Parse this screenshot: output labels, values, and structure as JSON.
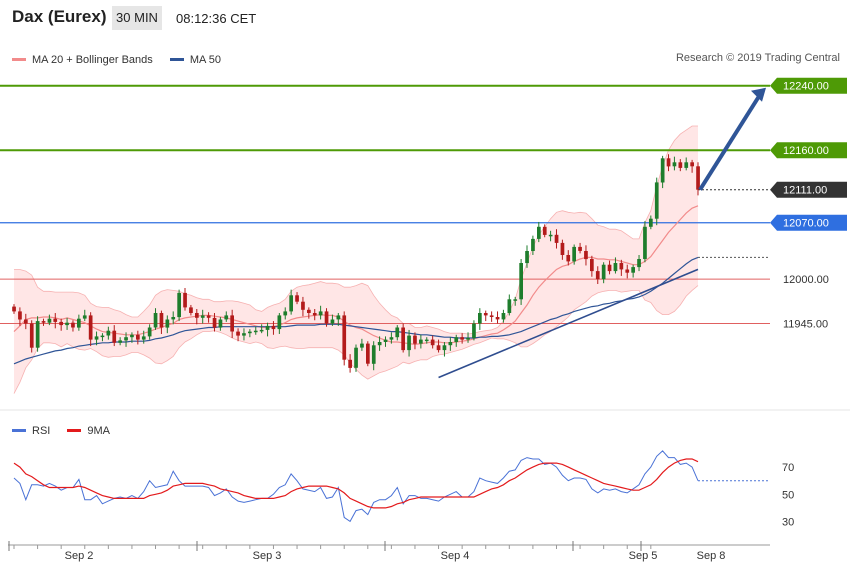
{
  "header": {
    "title": "Dax (Eurex)",
    "interval": "30 MIN",
    "time": "08:12:36 CET"
  },
  "legend": {
    "items": [
      {
        "label": "MA 20 + Bollinger Bands",
        "color": "#f28b8b"
      },
      {
        "label": "MA 50",
        "color": "#2f5597"
      }
    ],
    "credit": "Research © 2019 Trading Central"
  },
  "rsi_legend": {
    "items": [
      {
        "label": "RSI",
        "color": "#4a72d6"
      },
      {
        "label": "9MA",
        "color": "#e31a1c"
      }
    ]
  },
  "chart_data": {
    "type": "candlestick",
    "y_range": [
      11860,
      12262
    ],
    "x_labels": [
      "Sep 2",
      "Sep 3",
      "Sep 4",
      "Sep 5",
      "Sep 8"
    ],
    "levels": [
      {
        "value": 12240,
        "label": "12240.00",
        "color": "#4e9a06",
        "style": "resistance"
      },
      {
        "value": 12160,
        "label": "12160.00",
        "color": "#4e9a06",
        "style": "resistance"
      },
      {
        "value": 12111,
        "label": "12111.00",
        "color": "#333333",
        "style": "last"
      },
      {
        "value": 12070,
        "label": "12070.00",
        "color": "#2f6fe0",
        "style": "pivot"
      },
      {
        "value": 12000,
        "label": "12000.00",
        "color": "#e06060",
        "style": "support"
      },
      {
        "value": 11945,
        "label": "11945.00",
        "color": "#e06060",
        "style": "support"
      }
    ],
    "candles_close": [
      11960,
      11950,
      11945,
      11915,
      11948,
      11946,
      11951,
      11947,
      11943,
      11946,
      11940,
      11951,
      11955,
      11925,
      11929,
      11930,
      11936,
      11921,
      11924,
      11928,
      11931,
      11925,
      11929,
      11940,
      11958,
      11940,
      11950,
      11953,
      11983,
      11965,
      11958,
      11952,
      11955,
      11952,
      11940,
      11950,
      11955,
      11935,
      11930,
      11933,
      11935,
      11936,
      11937,
      11942,
      11938,
      11955,
      11960,
      11980,
      11972,
      11962,
      11958,
      11955,
      11960,
      11945,
      11950,
      11955,
      11900,
      11890,
      11915,
      11920,
      11895,
      11918,
      11922,
      11925,
      11928,
      11940,
      11912,
      11930,
      11920,
      11925,
      11925,
      11918,
      11912,
      11918,
      11922,
      11928,
      11925,
      11927,
      11945,
      11958,
      11955,
      11953,
      11950,
      11958,
      11975,
      11975,
      12020,
      12035,
      12050,
      12065,
      12055,
      12055,
      12045,
      12030,
      12022,
      12040,
      12035,
      12025,
      12010,
      12000,
      12018,
      12010,
      12020,
      12012,
      12008,
      12015,
      12025,
      12065,
      12075,
      12120,
      12150,
      12140,
      12145,
      12138,
      12145,
      12140,
      12111
    ],
    "bollinger": {
      "ma20": [
        11935,
        11942,
        11950,
        11952,
        11952,
        11953,
        11953,
        11952,
        11950,
        11952,
        11950,
        11948,
        11946,
        11942,
        11938,
        11935,
        11934,
        11933,
        11932,
        11931,
        11931,
        11931,
        11933,
        11935,
        11938,
        11940,
        11943,
        11945,
        11950,
        11952,
        11953,
        11954,
        11955,
        11955,
        11954,
        11953,
        11952,
        11950,
        11948,
        11946,
        11944,
        11942,
        11940,
        11940,
        11941,
        11943,
        11946,
        11950,
        11952,
        11953,
        11954,
        11955,
        11956,
        11955,
        11955,
        11953,
        11948,
        11943,
        11940,
        11938,
        11934,
        11930,
        11927,
        11924,
        11922,
        11922,
        11921,
        11920,
        11919,
        11920,
        11921,
        11922,
        11922,
        11921,
        11921,
        11922,
        11923,
        11924,
        11926,
        11928,
        11930,
        11932,
        11933,
        11937,
        11942,
        11948,
        11958,
        11968,
        11980,
        11990,
        11998,
        12005,
        12012,
        12016,
        12018,
        12022,
        12025,
        12027,
        12027,
        12025,
        12025,
        12024,
        12024,
        12022,
        12020,
        12018,
        12018,
        12022,
        12028,
        12038,
        12048,
        12058,
        12066,
        12074,
        12082,
        12088,
        12091
      ],
      "upper": [
        12012,
        12012,
        12010,
        12005,
        11990,
        11985,
        11985,
        11984,
        11984,
        11984,
        11984,
        11983,
        11980,
        11970,
        11966,
        11965,
        11965,
        11962,
        11960,
        11956,
        11953,
        11953,
        11960,
        11968,
        11980,
        11985,
        11987,
        11986,
        11985,
        11982,
        11980,
        11977,
        11975,
        11975,
        11972,
        11972,
        11973,
        11973,
        11972,
        11970,
        11968,
        11962,
        11960,
        11965,
        11968,
        11970,
        11975,
        11985,
        11990,
        11992,
        11993,
        11995,
        11997,
        11995,
        11995,
        11994,
        11990,
        11990,
        11992,
        11995,
        11992,
        11980,
        11970,
        11962,
        11955,
        11952,
        11945,
        11945,
        11940,
        11940,
        11942,
        11940,
        11938,
        11935,
        11933,
        11933,
        11933,
        11932,
        11933,
        11935,
        11936,
        11937,
        11940,
        11948,
        11960,
        11975,
        12000,
        12020,
        12040,
        12055,
        12065,
        12075,
        12083,
        12085,
        12083,
        12082,
        12083,
        12082,
        12075,
        12067,
        12065,
        12062,
        12062,
        12060,
        12055,
        12050,
        12050,
        12070,
        12085,
        12115,
        12140,
        12160,
        12172,
        12180,
        12185,
        12190,
        12190
      ],
      "lower": [
        11858,
        11872,
        11890,
        11900,
        11914,
        11921,
        11921,
        11920,
        11916,
        11920,
        11916,
        11913,
        11912,
        11914,
        11910,
        11905,
        11903,
        11904,
        11904,
        11906,
        11909,
        11909,
        11906,
        11902,
        11896,
        11895,
        11899,
        11904,
        11915,
        11922,
        11926,
        11931,
        11935,
        11935,
        11936,
        11934,
        11931,
        11927,
        11924,
        11922,
        11920,
        11922,
        11920,
        11915,
        11914,
        11916,
        11917,
        11915,
        11914,
        11914,
        11915,
        11915,
        11915,
        11915,
        11915,
        11912,
        11906,
        11896,
        11888,
        11881,
        11876,
        11880,
        11884,
        11886,
        11889,
        11892,
        11897,
        11895,
        11898,
        11900,
        11900,
        11904,
        11906,
        11907,
        11909,
        11911,
        11913,
        11916,
        11919,
        11921,
        11924,
        11927,
        11926,
        11926,
        11924,
        11921,
        11916,
        11916,
        11920,
        11925,
        11931,
        11935,
        11941,
        11947,
        11953,
        11962,
        11967,
        11972,
        11979,
        11983,
        11985,
        11986,
        11986,
        11984,
        11985,
        11986,
        11986,
        11974,
        11971,
        11961,
        11956,
        11956,
        11960,
        11968,
        11979,
        11986,
        11992
      ]
    },
    "ma50": [
      11895,
      11898,
      11901,
      11903,
      11905,
      11907,
      11909,
      11911,
      11912,
      11914,
      11915,
      11917,
      11918,
      11919,
      11920,
      11921,
      11921,
      11922,
      11922,
      11922,
      11923,
      11923,
      11923,
      11924,
      11926,
      11927,
      11929,
      11931,
      11934,
      11936,
      11937,
      11938,
      11939,
      11940,
      11940,
      11941,
      11941,
      11941,
      11941,
      11941,
      11941,
      11941,
      11941,
      11941,
      11941,
      11941,
      11941,
      11942,
      11943,
      11943,
      11943,
      11943,
      11944,
      11944,
      11944,
      11944,
      11943,
      11942,
      11941,
      11940,
      11939,
      11938,
      11937,
      11936,
      11935,
      11935,
      11934,
      11933,
      11932,
      11931,
      11931,
      11930,
      11929,
      11928,
      11928,
      11927,
      11927,
      11927,
      11927,
      11928,
      11928,
      11929,
      11929,
      11930,
      11931,
      11933,
      11935,
      11938,
      11941,
      11944,
      11947,
      11950,
      11952,
      11955,
      11957,
      11960,
      11962,
      11964,
      11966,
      11967,
      11969,
      11970,
      11972,
      11973,
      11975,
      11976,
      11978,
      11981,
      11985,
      11990,
      11995,
      12001,
      12007,
      12013,
      12019,
      12024,
      12027
    ],
    "trend_arrow": {
      "from": [
        11878
      ],
      "to": [
        12240
      ]
    },
    "rsi": {
      "y_ticks": [
        30,
        50,
        70
      ],
      "rsi": [
        62,
        58,
        46,
        57,
        57,
        56,
        58,
        56,
        53,
        55,
        55,
        61,
        46,
        46,
        49,
        43,
        45,
        47,
        48,
        47,
        49,
        47,
        52,
        60,
        55,
        56,
        57,
        67,
        60,
        56,
        56,
        56,
        56,
        55,
        49,
        51,
        54,
        48,
        45,
        44,
        45,
        46,
        47,
        47,
        50,
        55,
        57,
        65,
        60,
        54,
        53,
        52,
        55,
        47,
        48,
        55,
        33,
        30,
        38,
        39,
        35,
        44,
        46,
        46,
        49,
        55,
        43,
        49,
        49,
        47,
        47,
        46,
        45,
        48,
        50,
        52,
        48,
        48,
        52,
        62,
        60,
        59,
        58,
        62,
        67,
        68,
        75,
        77,
        76,
        76,
        72,
        73,
        70,
        64,
        60,
        62,
        62,
        61,
        54,
        51,
        54,
        53,
        54,
        52,
        51,
        54,
        57,
        65,
        70,
        78,
        82,
        77,
        77,
        72,
        73,
        70,
        60
      ],
      "ma9": [
        73,
        70,
        65,
        63,
        60,
        57,
        55,
        55,
        55,
        55,
        55,
        56,
        55,
        53,
        51,
        49,
        48,
        47,
        47,
        47,
        47,
        47,
        47,
        49,
        50,
        51,
        53,
        56,
        57,
        58,
        58,
        58,
        58,
        57,
        56,
        54,
        53,
        52,
        51,
        49,
        48,
        47,
        47,
        47,
        47,
        48,
        49,
        52,
        54,
        55,
        56,
        56,
        56,
        56,
        55,
        54,
        51,
        47,
        45,
        43,
        41,
        40,
        40,
        40,
        41,
        43,
        44,
        46,
        47,
        48,
        48,
        48,
        48,
        48,
        48,
        48,
        48,
        48,
        48,
        50,
        52,
        54,
        55,
        57,
        60,
        62,
        65,
        68,
        70,
        72,
        73,
        73,
        73,
        72,
        70,
        68,
        66,
        64,
        62,
        60,
        58,
        57,
        56,
        55,
        54,
        53,
        53,
        55,
        57,
        61,
        66,
        70,
        73,
        75,
        76,
        76,
        74
      ]
    }
  }
}
